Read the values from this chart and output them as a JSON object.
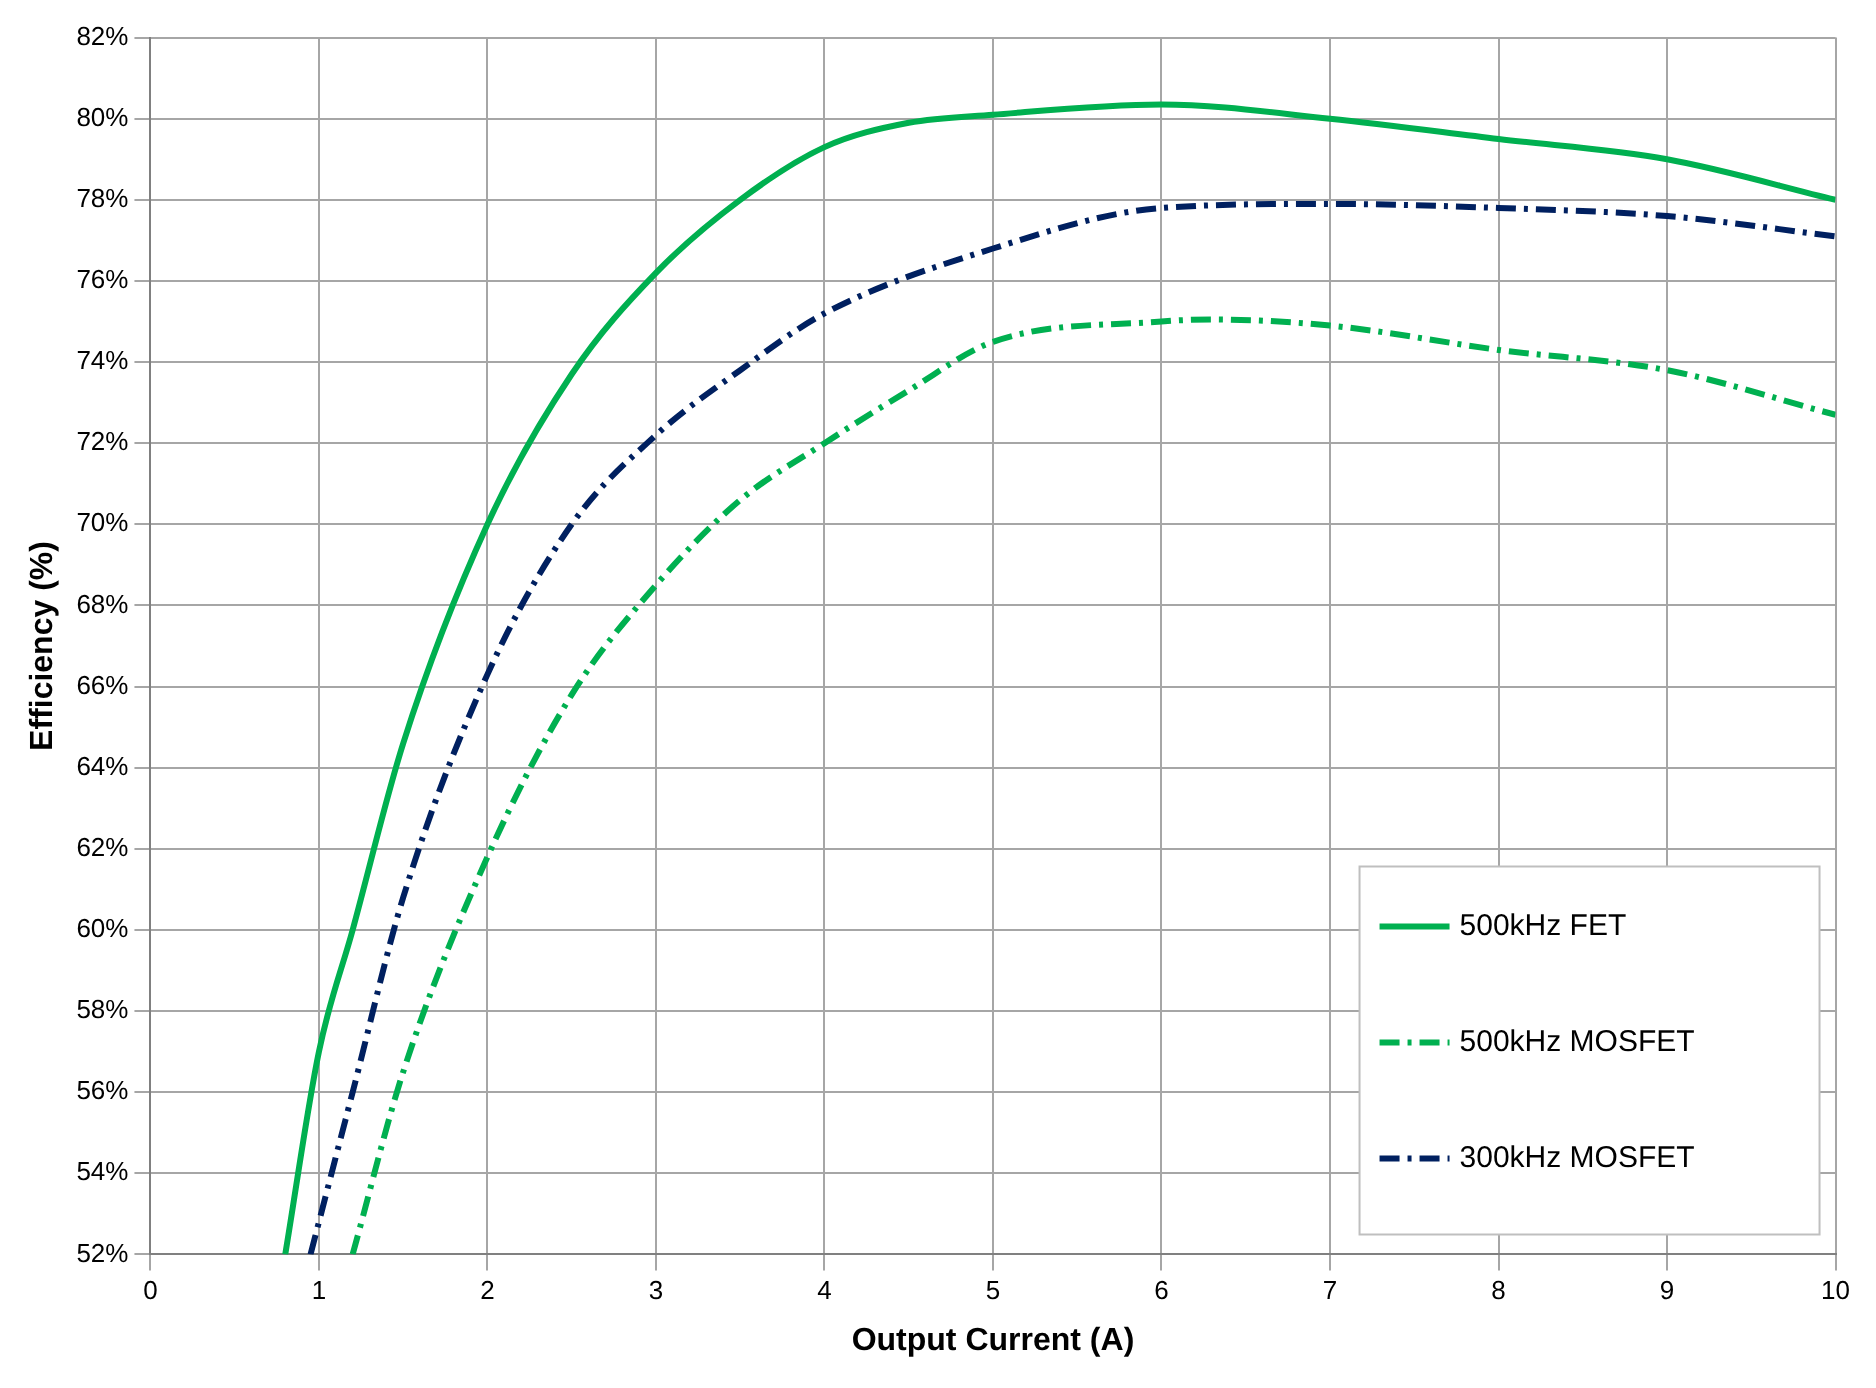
{
  "chart_data": {
    "type": "line",
    "xlabel": "Output Current (A)",
    "ylabel": "Efficiency (%)",
    "xlim": [
      0,
      10
    ],
    "xticks": [
      0,
      1,
      2,
      3,
      4,
      5,
      6,
      7,
      8,
      9,
      10
    ],
    "ylim": [
      52,
      82
    ],
    "yticks": [
      {
        "value": 52,
        "label": "52%"
      },
      {
        "value": 54,
        "label": "54%"
      },
      {
        "value": 56,
        "label": "56%"
      },
      {
        "value": 58,
        "label": "58%"
      },
      {
        "value": 60,
        "label": "60%"
      },
      {
        "value": 62,
        "label": "62%"
      },
      {
        "value": 64,
        "label": "64%"
      },
      {
        "value": 66,
        "label": "66%"
      },
      {
        "value": 68,
        "label": "68%"
      },
      {
        "value": 70,
        "label": "70%"
      },
      {
        "value": 72,
        "label": "72%"
      },
      {
        "value": 74,
        "label": "74%"
      },
      {
        "value": 76,
        "label": "76%"
      },
      {
        "value": 78,
        "label": "78%"
      },
      {
        "value": 80,
        "label": "80%"
      },
      {
        "value": 82,
        "label": "82%"
      }
    ],
    "grid": true,
    "legend": "bottom right",
    "marker": "none",
    "series": [
      {
        "name": "500kHz FET",
        "color": "#00b050",
        "line_style": "solid",
        "x": [
          0.8,
          1,
          1.2,
          1.5,
          2,
          2.5,
          3,
          3.5,
          4,
          4.5,
          5,
          6,
          7,
          8,
          9,
          10
        ],
        "values": [
          52,
          57,
          60,
          64.6,
          70,
          73.7,
          76.2,
          78,
          79.3,
          79.9,
          80.1,
          80.35,
          80,
          79.5,
          79,
          78
        ]
      },
      {
        "name": "500kHz MOSFET",
        "color": "#00b050",
        "line_style": "dashed",
        "x": [
          1.2,
          1.5,
          2,
          2.5,
          3,
          3.5,
          4,
          4.5,
          5,
          6,
          6.3,
          7,
          8,
          9,
          10
        ],
        "values": [
          52,
          56.5,
          61.8,
          65.8,
          68.5,
          70.6,
          72,
          73.3,
          74.5,
          75,
          75.05,
          74.9,
          74.3,
          73.8,
          72.7
        ]
      },
      {
        "name": "300kHz MOSFET",
        "color": "#002060",
        "line_style": "dashed",
        "x": [
          0.95,
          1.2,
          1.5,
          2,
          2.5,
          3,
          3.5,
          4,
          5,
          6,
          7,
          8,
          9,
          10
        ],
        "values": [
          52,
          56,
          60.8,
          66.3,
          70,
          72.2,
          73.8,
          75.2,
          76.8,
          77.8,
          77.9,
          77.8,
          77.6,
          77.1
        ]
      }
    ]
  }
}
